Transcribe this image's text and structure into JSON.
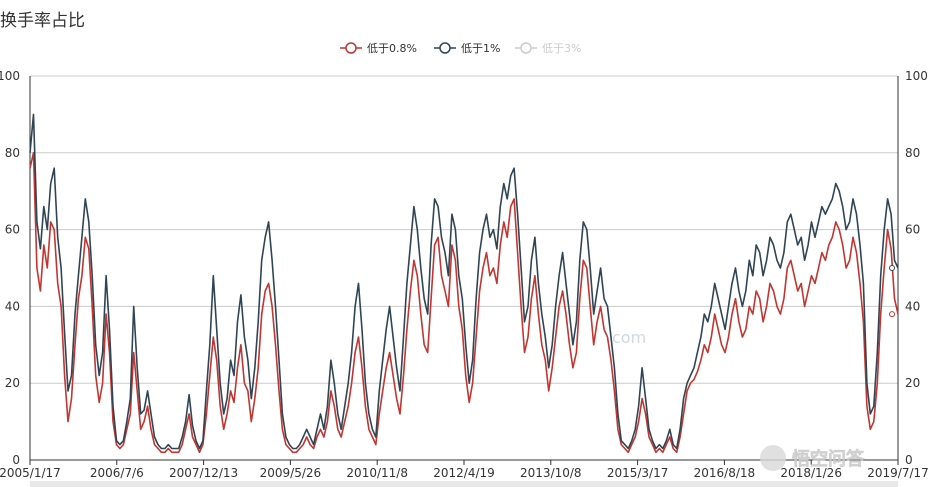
{
  "chart_data": {
    "type": "line",
    "title": "换手率占比",
    "xlabel": "",
    "ylabel": "",
    "ylim": [
      0,
      100
    ],
    "yticks": [
      0,
      20,
      40,
      60,
      80,
      100
    ],
    "x_tick_labels": [
      "2005/1/17",
      "2006/7/6",
      "2007/12/13",
      "2009/5/26",
      "2010/11/8",
      "2012/4/19",
      "2013/10/8",
      "2015/3/17",
      "2016/8/18",
      "2018/1/26",
      "2019/7/17"
    ],
    "legend_position": "top-center",
    "series": [
      {
        "name": "低于0.8%",
        "color": "#c23531",
        "visible": true,
        "values": [
          76,
          80,
          50,
          44,
          56,
          50,
          62,
          60,
          46,
          40,
          22,
          10,
          16,
          30,
          42,
          48,
          58,
          55,
          40,
          22,
          15,
          20,
          38,
          28,
          10,
          4,
          3,
          4,
          8,
          12,
          28,
          18,
          8,
          10,
          14,
          8,
          4,
          3,
          2,
          2,
          3,
          2,
          2,
          2,
          4,
          8,
          12,
          6,
          4,
          2,
          4,
          12,
          22,
          32,
          26,
          14,
          8,
          12,
          18,
          15,
          24,
          30,
          20,
          18,
          10,
          16,
          24,
          38,
          44,
          46,
          40,
          30,
          18,
          8,
          4,
          3,
          2,
          2,
          3,
          4,
          6,
          4,
          3,
          6,
          8,
          6,
          10,
          18,
          14,
          8,
          6,
          10,
          14,
          20,
          28,
          32,
          24,
          14,
          8,
          6,
          4,
          12,
          18,
          24,
          28,
          22,
          16,
          12,
          22,
          34,
          44,
          52,
          48,
          38,
          30,
          28,
          42,
          56,
          58,
          48,
          44,
          40,
          56,
          52,
          40,
          34,
          22,
          15,
          20,
          32,
          44,
          50,
          54,
          48,
          50,
          46,
          56,
          62,
          58,
          66,
          68,
          54,
          40,
          28,
          32,
          42,
          48,
          38,
          30,
          26,
          18,
          24,
          32,
          40,
          44,
          38,
          30,
          24,
          28,
          42,
          52,
          50,
          40,
          30,
          36,
          40,
          34,
          32,
          26,
          18,
          8,
          4,
          3,
          2,
          4,
          6,
          10,
          16,
          12,
          6,
          4,
          2,
          3,
          2,
          4,
          6,
          3,
          2,
          6,
          12,
          18,
          20,
          21,
          23,
          26,
          30,
          28,
          32,
          38,
          34,
          30,
          28,
          32,
          38,
          42,
          36,
          32,
          34,
          40,
          38,
          44,
          42,
          36,
          40,
          46,
          44,
          40,
          38,
          42,
          50,
          52,
          48,
          44,
          46,
          40,
          44,
          48,
          46,
          50,
          54,
          52,
          56,
          58,
          62,
          60,
          56,
          50,
          52,
          58,
          54,
          46,
          36,
          14,
          8,
          10,
          20,
          38,
          50,
          60,
          55,
          42,
          38
        ]
      },
      {
        "name": "低于1%",
        "color": "#2f4554",
        "visible": true,
        "values": [
          80,
          90,
          62,
          55,
          66,
          60,
          72,
          76,
          58,
          50,
          33,
          18,
          22,
          38,
          48,
          58,
          68,
          62,
          48,
          30,
          22,
          28,
          48,
          34,
          14,
          5,
          4,
          5,
          10,
          16,
          40,
          24,
          12,
          13,
          18,
          12,
          6,
          4,
          3,
          3,
          4,
          3,
          3,
          3,
          6,
          10,
          17,
          9,
          5,
          3,
          5,
          18,
          30,
          48,
          34,
          20,
          12,
          16,
          26,
          22,
          36,
          43,
          32,
          26,
          16,
          24,
          36,
          52,
          58,
          62,
          52,
          40,
          26,
          12,
          6,
          4,
          3,
          3,
          4,
          6,
          8,
          6,
          4,
          8,
          12,
          8,
          14,
          26,
          20,
          12,
          8,
          14,
          20,
          28,
          40,
          46,
          34,
          20,
          12,
          8,
          6,
          18,
          26,
          34,
          40,
          32,
          24,
          18,
          32,
          46,
          56,
          66,
          60,
          50,
          42,
          38,
          56,
          68,
          66,
          58,
          54,
          48,
          64,
          60,
          48,
          42,
          30,
          20,
          26,
          42,
          54,
          60,
          64,
          58,
          60,
          55,
          66,
          72,
          68,
          74,
          76,
          64,
          50,
          36,
          40,
          52,
          58,
          46,
          38,
          32,
          24,
          30,
          40,
          48,
          54,
          46,
          38,
          30,
          36,
          52,
          62,
          60,
          50,
          38,
          44,
          50,
          42,
          40,
          32,
          24,
          12,
          5,
          4,
          3,
          5,
          8,
          14,
          24,
          16,
          8,
          5,
          3,
          4,
          3,
          5,
          8,
          4,
          3,
          8,
          16,
          20,
          22,
          24,
          28,
          32,
          38,
          36,
          40,
          46,
          42,
          38,
          34,
          40,
          46,
          50,
          44,
          40,
          44,
          52,
          48,
          56,
          54,
          48,
          52,
          58,
          56,
          52,
          50,
          54,
          62,
          64,
          60,
          56,
          58,
          52,
          56,
          62,
          58,
          62,
          66,
          64,
          66,
          68,
          72,
          70,
          66,
          60,
          62,
          68,
          64,
          56,
          46,
          20,
          12,
          14,
          28,
          48,
          60,
          68,
          64,
          52,
          50
        ]
      },
      {
        "name": "低于3%",
        "color": "#cccccc",
        "visible": false,
        "values": []
      }
    ]
  },
  "watermark": {
    "faint_text": "com",
    "brand_text": "悟空问答"
  }
}
